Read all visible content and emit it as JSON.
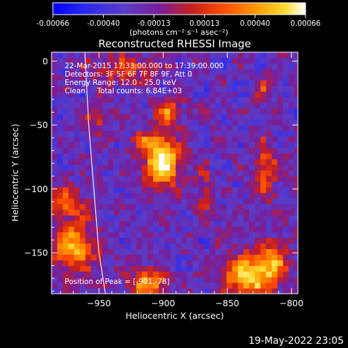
{
  "chart_data": {
    "type": "heatmap",
    "title": "Reconstructed RHESSI Image",
    "xlabel": "Heliocentric X (arcsec)",
    "ylabel": "Heliocentric Y (arcsec)",
    "xlim": [
      -987,
      -795
    ],
    "ylim": [
      -182,
      7
    ],
    "x_ticks": [
      -950,
      -900,
      -850,
      -800
    ],
    "y_ticks": [
      0,
      -50,
      -100,
      -150
    ],
    "colorbar": {
      "ticks": [
        "-0.00066",
        "-0.00040",
        "-0.00013",
        "0.00013",
        "0.00040",
        "0.00066"
      ],
      "range": [
        -0.00066,
        0.00066
      ],
      "units": "(photons cm⁻² s⁻¹ asec⁻²)"
    },
    "annotations": [
      "22-Mar-2015 17:33:00.000 to 17:39:00.000",
      "Detectors: 3F 5F 6F 7F 8F 9F, Att 0",
      "Energy Range: 12.0 - 25.0 keV",
      "Clean     Total counts: 6.84E+03"
    ],
    "peak_label": "Position of Peak = [-901,-78]",
    "peak": [
      -901,
      -78
    ],
    "sources": [
      {
        "x": -901,
        "y": -78,
        "amp": 1.0,
        "sx": 9,
        "sy": 13
      },
      {
        "x": -896,
        "y": -40,
        "amp": 0.55,
        "sx": 7,
        "sy": 8
      },
      {
        "x": -913,
        "y": -63,
        "amp": 0.35,
        "sx": 8,
        "sy": 6
      },
      {
        "x": -832,
        "y": -168,
        "amp": 0.8,
        "sx": 14,
        "sy": 12
      },
      {
        "x": -815,
        "y": -155,
        "amp": 0.5,
        "sx": 8,
        "sy": 10
      },
      {
        "x": -970,
        "y": -145,
        "amp": 0.65,
        "sx": 12,
        "sy": 14
      },
      {
        "x": -975,
        "y": -110,
        "amp": 0.45,
        "sx": 10,
        "sy": 8
      },
      {
        "x": -912,
        "y": -173,
        "amp": 0.7,
        "sx": 9,
        "sy": 7
      },
      {
        "x": -820,
        "y": -85,
        "amp": 0.45,
        "sx": 6,
        "sy": 16
      },
      {
        "x": -930,
        "y": -5,
        "amp": 0.35,
        "sx": 18,
        "sy": 8
      },
      {
        "x": -952,
        "y": -42,
        "amp": 0.35,
        "sx": 6,
        "sy": 9
      },
      {
        "x": -820,
        "y": -20,
        "amp": 0.3,
        "sx": 6,
        "sy": 6
      },
      {
        "x": -868,
        "y": -100,
        "amp": 0.3,
        "sx": 4,
        "sy": 14
      }
    ],
    "limb_curve": {
      "x": [
        -961,
        -958,
        -954,
        -950,
        -945
      ],
      "y": [
        7,
        -50,
        -100,
        -150,
        -182
      ]
    },
    "colors": {
      "background": "#000000",
      "foreground": "#ffffff",
      "colormap": [
        "#0000ff",
        "#2828f0",
        "#5a3cc8",
        "#781e9a",
        "#c81e1e",
        "#ff5000",
        "#ff9600",
        "#ffdc32",
        "#ffffff"
      ]
    }
  },
  "footer": {
    "timestamp": "19-May-2022 23:05"
  }
}
